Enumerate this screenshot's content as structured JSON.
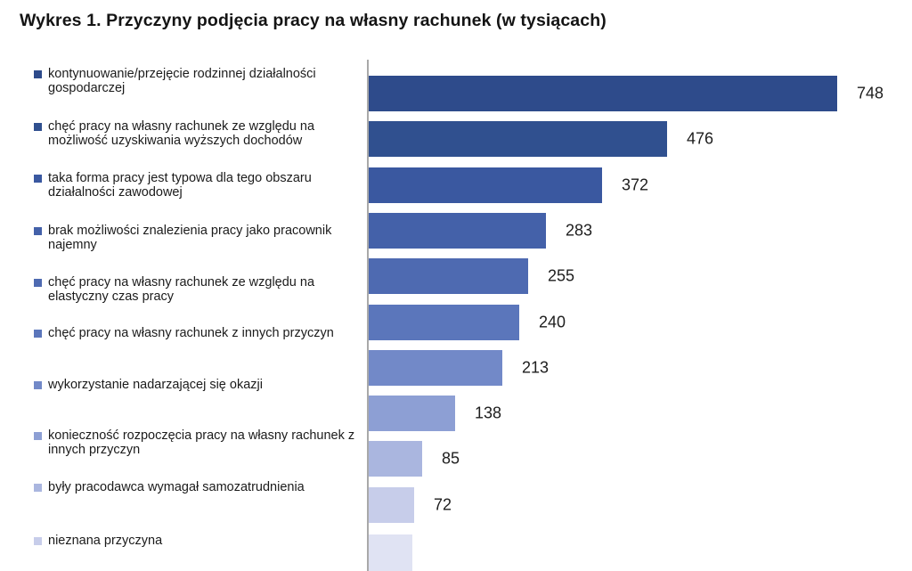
{
  "colors": {
    "background": "#ffffff",
    "title_text": "#141414",
    "label_text": "#1b1b1b",
    "value_text": "#1d1d1d",
    "axis_line": "#a9a9a9"
  },
  "chart_data": {
    "type": "bar",
    "orientation": "horizontal",
    "title": "Wykres 1. Przyczyny podjęcia pracy na własny rachunek (w tysiącach)",
    "xlabel": "",
    "ylabel": "",
    "unit": "tysiące",
    "grid": false,
    "legend_position": "left",
    "value_labels_shown": true,
    "xlim": [
      0,
      850
    ],
    "categories": [
      "kontynuowanie/przejęcie rodzinnej działalności gospodarczej",
      "chęć pracy na własny rachunek ze względu na możliwość uzyskiwania wyższych dochodów",
      "taka forma pracy jest typowa dla tego obszaru działalności zawodowej",
      "brak możliwości znalezienia pracy jako pracownik najemny",
      "chęć pracy na własny rachunek ze względu na elastyczny czas pracy",
      "chęć pracy na własny rachunek z innych przyczyn",
      "wykorzystanie nadarzającej się okazji",
      "konieczność rozpoczęcia pracy na własny rachunek z innych przyczyn",
      "były pracodawca wymagał samozatrudnienia",
      "nieznana przyczyna"
    ],
    "values": [
      748,
      476,
      372,
      283,
      255,
      240,
      213,
      138,
      85,
      72
    ],
    "bar_colors": [
      "#2e4b8b",
      "#30508f",
      "#3a58a0",
      "#4461a9",
      "#4e6ab1",
      "#5b76bb",
      "#7289c8",
      "#8d9fd4",
      "#aab6df",
      "#c7cdea"
    ],
    "partial_extra_bar": {
      "present": true,
      "approx_value": 70,
      "color": "#e0e3f3",
      "value_label_visible": false,
      "note": "bar cut off by bottom edge of the image"
    }
  }
}
